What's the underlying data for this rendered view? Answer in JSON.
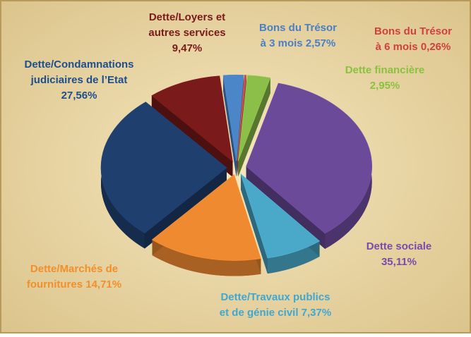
{
  "chart_data": {
    "type": "pie",
    "categories": [
      [
        "Bons du Trésor",
        "à 3 mois"
      ],
      [
        "Bons du Trésor",
        "à 6 mois"
      ],
      [
        "Dette financière"
      ],
      [
        "Dette sociale"
      ],
      [
        "Dette/Travaux publics",
        "et de génie civil"
      ],
      [
        "Dette/Marchés de",
        "fournitures"
      ],
      [
        "Dette/Condamnations",
        "judiciaires de l’Etat"
      ],
      [
        "Dette/Loyers et",
        "autres services"
      ]
    ],
    "values": [
      2.57,
      0.26,
      2.95,
      35.11,
      7.37,
      14.71,
      27.56,
      9.47
    ],
    "value_labels": [
      "2,57%",
      "0,26%",
      "2,95%",
      "35,11%",
      "7,37%",
      "14,71%",
      "27,56%",
      "9,47%"
    ],
    "colors": [
      "#4a86c8",
      "#c0504d",
      "#8cbf4a",
      "#6b4a9a",
      "#4aa8c8",
      "#f08a30",
      "#1f3f6e",
      "#7a1a1a"
    ],
    "label_colors": [
      "#4a7fc4",
      "#d04040",
      "#8cc040",
      "#7a4aaa",
      "#40a8d0",
      "#f0902c",
      "#1f4e8c",
      "#7a1a1a"
    ]
  }
}
